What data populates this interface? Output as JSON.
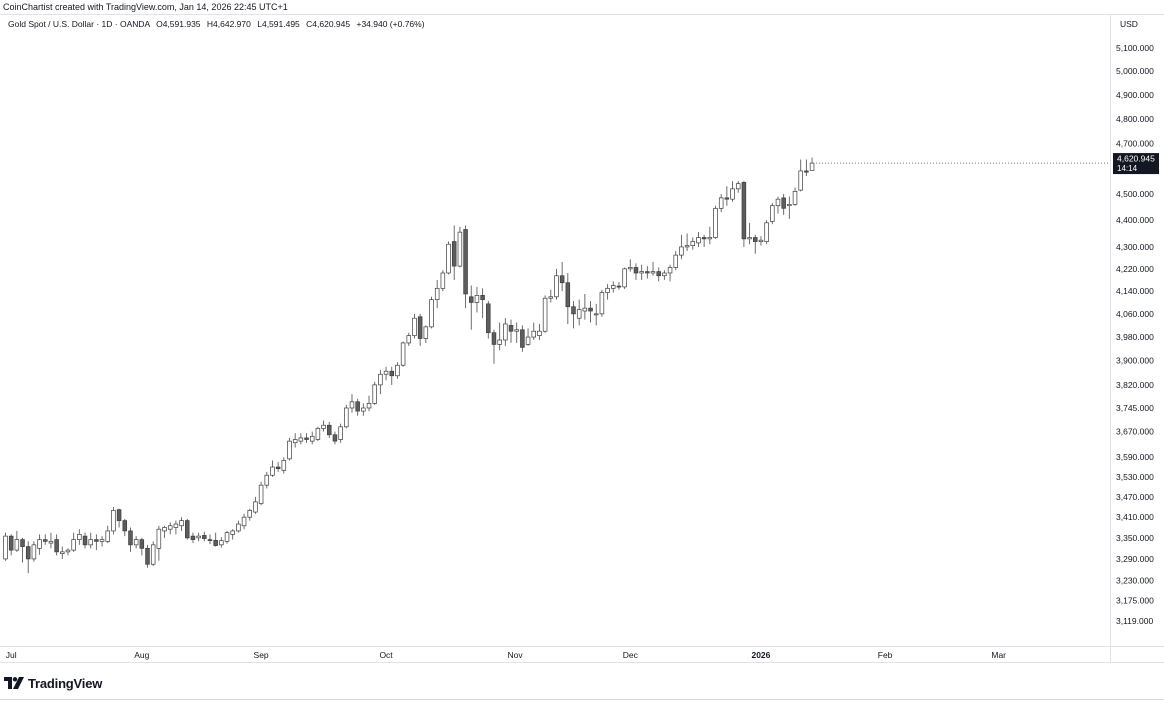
{
  "header": {
    "credit": "CoinChartist created with TradingView.com, Jan 14, 2026 22:45 UTC+1"
  },
  "legend": {
    "symbol": "Gold Spot / U.S. Dollar · 1D · OANDA",
    "open": "O4,591.935",
    "high": "H4,642.970",
    "low": "L4,591.495",
    "close": "C4,620.945",
    "change": "+34.940 (+0.76%)"
  },
  "currency_label": "USD",
  "price_tag": {
    "price": "4,620.945",
    "countdown": "14:14"
  },
  "brand": {
    "name": "TradingView"
  },
  "colors": {
    "up_body": "#ffffff",
    "down_body": "#5d5d5d",
    "wick": "#5d5d5d",
    "border": "#3c3c3c",
    "tag_bg": "#131722"
  },
  "chart_data": {
    "type": "candlestick",
    "title": "Gold Spot / U.S. Dollar · 1D · OANDA",
    "ylabel": "USD",
    "y_axis_labels": [
      "5,100.000",
      "5,000.000",
      "4,900.000",
      "4,800.000",
      "4,700.000",
      "4,500.000",
      "4,400.000",
      "4,300.000",
      "4,220.000",
      "4,140.000",
      "4,060.000",
      "3,980.000",
      "3,900.000",
      "3,820.000",
      "3,745.000",
      "3,670.000",
      "3,590.000",
      "3,530.000",
      "3,470.000",
      "3,410.000",
      "3,350.000",
      "3,290.000",
      "3,230.000",
      "3,175.000",
      "3,119.000"
    ],
    "y_axis_scale": "log",
    "ylim": [
      3090,
      5180
    ],
    "x_axis_labels": [
      {
        "label": "Jul",
        "date": "2025-07-01",
        "bold": false
      },
      {
        "label": "Aug",
        "date": "2025-08-01",
        "bold": false
      },
      {
        "label": "Sep",
        "date": "2025-09-01",
        "bold": false
      },
      {
        "label": "Oct",
        "date": "2025-10-01",
        "bold": false
      },
      {
        "label": "Nov",
        "date": "2025-11-01",
        "bold": false
      },
      {
        "label": "Dec",
        "date": "2025-12-01",
        "bold": false
      },
      {
        "label": "2026",
        "date": "2026-01-01",
        "bold": true
      },
      {
        "label": "Feb",
        "date": "2026-02-01",
        "bold": false
      },
      {
        "label": "Mar",
        "date": "2026-03-01",
        "bold": false
      }
    ],
    "candles": [
      {
        "date": "2025-06-30",
        "o": 3290,
        "h": 3365,
        "l": 3285,
        "c": 3355
      },
      {
        "date": "2025-07-01",
        "o": 3355,
        "h": 3360,
        "l": 3300,
        "c": 3315
      },
      {
        "date": "2025-07-02",
        "o": 3315,
        "h": 3370,
        "l": 3310,
        "c": 3345
      },
      {
        "date": "2025-07-03",
        "o": 3345,
        "h": 3350,
        "l": 3280,
        "c": 3325
      },
      {
        "date": "2025-07-04",
        "o": 3325,
        "h": 3340,
        "l": 3250,
        "c": 3290
      },
      {
        "date": "2025-07-07",
        "o": 3290,
        "h": 3340,
        "l": 3282,
        "c": 3330
      },
      {
        "date": "2025-07-08",
        "o": 3320,
        "h": 3360,
        "l": 3302,
        "c": 3345
      },
      {
        "date": "2025-07-09",
        "o": 3345,
        "h": 3360,
        "l": 3330,
        "c": 3340
      },
      {
        "date": "2025-07-10",
        "o": 3335,
        "h": 3365,
        "l": 3320,
        "c": 3340
      },
      {
        "date": "2025-07-11",
        "o": 3345,
        "h": 3360,
        "l": 3300,
        "c": 3310
      },
      {
        "date": "2025-07-14",
        "o": 3305,
        "h": 3325,
        "l": 3290,
        "c": 3310
      },
      {
        "date": "2025-07-15",
        "o": 3310,
        "h": 3320,
        "l": 3300,
        "c": 3315
      },
      {
        "date": "2025-07-16",
        "o": 3315,
        "h": 3365,
        "l": 3310,
        "c": 3345
      },
      {
        "date": "2025-07-17",
        "o": 3345,
        "h": 3375,
        "l": 3330,
        "c": 3360
      },
      {
        "date": "2025-07-18",
        "o": 3355,
        "h": 3365,
        "l": 3320,
        "c": 3330
      },
      {
        "date": "2025-07-21",
        "o": 3330,
        "h": 3365,
        "l": 3320,
        "c": 3345
      },
      {
        "date": "2025-07-22",
        "o": 3345,
        "h": 3360,
        "l": 3315,
        "c": 3340
      },
      {
        "date": "2025-07-23",
        "o": 3340,
        "h": 3355,
        "l": 3325,
        "c": 3345
      },
      {
        "date": "2025-07-24",
        "o": 3340,
        "h": 3385,
        "l": 3335,
        "c": 3370
      },
      {
        "date": "2025-07-25",
        "o": 3370,
        "h": 3440,
        "l": 3360,
        "c": 3430
      },
      {
        "date": "2025-07-28",
        "o": 3432,
        "h": 3435,
        "l": 3380,
        "c": 3400
      },
      {
        "date": "2025-07-29",
        "o": 3400,
        "h": 3405,
        "l": 3355,
        "c": 3370
      },
      {
        "date": "2025-07-30",
        "o": 3370,
        "h": 3380,
        "l": 3310,
        "c": 3330
      },
      {
        "date": "2025-07-31",
        "o": 3330,
        "h": 3355,
        "l": 3320,
        "c": 3345
      },
      {
        "date": "2025-08-01",
        "o": 3345,
        "h": 3350,
        "l": 3300,
        "c": 3320
      },
      {
        "date": "2025-08-04",
        "o": 3320,
        "h": 3330,
        "l": 3265,
        "c": 3275
      },
      {
        "date": "2025-08-05",
        "o": 3275,
        "h": 3340,
        "l": 3270,
        "c": 3330
      },
      {
        "date": "2025-08-06",
        "o": 3320,
        "h": 3385,
        "l": 3285,
        "c": 3375
      },
      {
        "date": "2025-08-07",
        "o": 3370,
        "h": 3385,
        "l": 3350,
        "c": 3380
      },
      {
        "date": "2025-08-08",
        "o": 3375,
        "h": 3395,
        "l": 3360,
        "c": 3385
      },
      {
        "date": "2025-08-11",
        "o": 3380,
        "h": 3400,
        "l": 3360,
        "c": 3390
      },
      {
        "date": "2025-08-12",
        "o": 3385,
        "h": 3410,
        "l": 3370,
        "c": 3400
      },
      {
        "date": "2025-08-13",
        "o": 3400,
        "h": 3405,
        "l": 3345,
        "c": 3350
      },
      {
        "date": "2025-08-14",
        "o": 3355,
        "h": 3365,
        "l": 3335,
        "c": 3345
      },
      {
        "date": "2025-08-15",
        "o": 3350,
        "h": 3365,
        "l": 3340,
        "c": 3355
      },
      {
        "date": "2025-08-18",
        "o": 3357,
        "h": 3368,
        "l": 3340,
        "c": 3348
      },
      {
        "date": "2025-08-19",
        "o": 3345,
        "h": 3360,
        "l": 3332,
        "c": 3343
      },
      {
        "date": "2025-08-20",
        "o": 3343,
        "h": 3365,
        "l": 3325,
        "c": 3328
      },
      {
        "date": "2025-08-21",
        "o": 3330,
        "h": 3352,
        "l": 3322,
        "c": 3342
      },
      {
        "date": "2025-08-22",
        "o": 3340,
        "h": 3370,
        "l": 3333,
        "c": 3365
      },
      {
        "date": "2025-08-25",
        "o": 3360,
        "h": 3375,
        "l": 3345,
        "c": 3370
      },
      {
        "date": "2025-08-26",
        "o": 3370,
        "h": 3400,
        "l": 3365,
        "c": 3390
      },
      {
        "date": "2025-08-27",
        "o": 3385,
        "h": 3420,
        "l": 3375,
        "c": 3410
      },
      {
        "date": "2025-08-28",
        "o": 3410,
        "h": 3435,
        "l": 3400,
        "c": 3430
      },
      {
        "date": "2025-08-29",
        "o": 3425,
        "h": 3470,
        "l": 3420,
        "c": 3455
      },
      {
        "date": "2025-09-01",
        "o": 3450,
        "h": 3515,
        "l": 3445,
        "c": 3505
      },
      {
        "date": "2025-09-02",
        "o": 3505,
        "h": 3545,
        "l": 3495,
        "c": 3535
      },
      {
        "date": "2025-09-03",
        "o": 3535,
        "h": 3580,
        "l": 3530,
        "c": 3560
      },
      {
        "date": "2025-09-04",
        "o": 3560,
        "h": 3575,
        "l": 3545,
        "c": 3555
      },
      {
        "date": "2025-09-05",
        "o": 3550,
        "h": 3590,
        "l": 3540,
        "c": 3580
      },
      {
        "date": "2025-09-08",
        "o": 3585,
        "h": 3650,
        "l": 3580,
        "c": 3640
      },
      {
        "date": "2025-09-09",
        "o": 3635,
        "h": 3665,
        "l": 3620,
        "c": 3645
      },
      {
        "date": "2025-09-10",
        "o": 3640,
        "h": 3665,
        "l": 3630,
        "c": 3650
      },
      {
        "date": "2025-09-11",
        "o": 3650,
        "h": 3665,
        "l": 3635,
        "c": 3645
      },
      {
        "date": "2025-09-12",
        "o": 3640,
        "h": 3670,
        "l": 3630,
        "c": 3655
      },
      {
        "date": "2025-09-15",
        "o": 3645,
        "h": 3685,
        "l": 3640,
        "c": 3680
      },
      {
        "date": "2025-09-16",
        "o": 3680,
        "h": 3705,
        "l": 3670,
        "c": 3690
      },
      {
        "date": "2025-09-17",
        "o": 3690,
        "h": 3700,
        "l": 3650,
        "c": 3660
      },
      {
        "date": "2025-09-18",
        "o": 3660,
        "h": 3670,
        "l": 3630,
        "c": 3640
      },
      {
        "date": "2025-09-19",
        "o": 3645,
        "h": 3695,
        "l": 3635,
        "c": 3685
      },
      {
        "date": "2025-09-22",
        "o": 3685,
        "h": 3755,
        "l": 3680,
        "c": 3745
      },
      {
        "date": "2025-09-23",
        "o": 3745,
        "h": 3790,
        "l": 3730,
        "c": 3765
      },
      {
        "date": "2025-09-24",
        "o": 3765,
        "h": 3775,
        "l": 3720,
        "c": 3735
      },
      {
        "date": "2025-09-25",
        "o": 3735,
        "h": 3760,
        "l": 3720,
        "c": 3745
      },
      {
        "date": "2025-09-26",
        "o": 3745,
        "h": 3785,
        "l": 3735,
        "c": 3760
      },
      {
        "date": "2025-09-29",
        "o": 3760,
        "h": 3830,
        "l": 3755,
        "c": 3820
      },
      {
        "date": "2025-09-30",
        "o": 3820,
        "h": 3870,
        "l": 3790,
        "c": 3855
      },
      {
        "date": "2025-10-01",
        "o": 3855,
        "h": 3880,
        "l": 3835,
        "c": 3865
      },
      {
        "date": "2025-10-02",
        "o": 3865,
        "h": 3880,
        "l": 3820,
        "c": 3850
      },
      {
        "date": "2025-10-03",
        "o": 3850,
        "h": 3895,
        "l": 3840,
        "c": 3885
      },
      {
        "date": "2025-10-06",
        "o": 3885,
        "h": 3965,
        "l": 3880,
        "c": 3960
      },
      {
        "date": "2025-10-07",
        "o": 3960,
        "h": 3995,
        "l": 3950,
        "c": 3985
      },
      {
        "date": "2025-10-08",
        "o": 3985,
        "h": 4060,
        "l": 3975,
        "c": 4045
      },
      {
        "date": "2025-10-09",
        "o": 4050,
        "h": 4060,
        "l": 3950,
        "c": 3975
      },
      {
        "date": "2025-10-10",
        "o": 3975,
        "h": 4020,
        "l": 3960,
        "c": 4015
      },
      {
        "date": "2025-10-13",
        "o": 4015,
        "h": 4120,
        "l": 4010,
        "c": 4110
      },
      {
        "date": "2025-10-14",
        "o": 4110,
        "h": 4180,
        "l": 4080,
        "c": 4150
      },
      {
        "date": "2025-10-15",
        "o": 4150,
        "h": 4215,
        "l": 4140,
        "c": 4205
      },
      {
        "date": "2025-10-16",
        "o": 4205,
        "h": 4320,
        "l": 4200,
        "c": 4310
      },
      {
        "date": "2025-10-17",
        "o": 4320,
        "h": 4380,
        "l": 4180,
        "c": 4230
      },
      {
        "date": "2025-10-20",
        "o": 4230,
        "h": 4375,
        "l": 4225,
        "c": 4355
      },
      {
        "date": "2025-10-21",
        "o": 4365,
        "h": 4380,
        "l": 4080,
        "c": 4130
      },
      {
        "date": "2025-10-22",
        "o": 4120,
        "h": 4160,
        "l": 4005,
        "c": 4100
      },
      {
        "date": "2025-10-23",
        "o": 4100,
        "h": 4155,
        "l": 4065,
        "c": 4125
      },
      {
        "date": "2025-10-24",
        "o": 4125,
        "h": 4150,
        "l": 4045,
        "c": 4110
      },
      {
        "date": "2025-10-27",
        "o": 4095,
        "h": 4105,
        "l": 3975,
        "c": 3995
      },
      {
        "date": "2025-10-28",
        "o": 3995,
        "h": 4005,
        "l": 3890,
        "c": 3955
      },
      {
        "date": "2025-10-29",
        "o": 3955,
        "h": 4030,
        "l": 3935,
        "c": 3970
      },
      {
        "date": "2025-10-30",
        "o": 3970,
        "h": 4045,
        "l": 3950,
        "c": 4025
      },
      {
        "date": "2025-10-31",
        "o": 4020,
        "h": 4040,
        "l": 3960,
        "c": 4000
      },
      {
        "date": "2025-11-03",
        "o": 4000,
        "h": 4030,
        "l": 3960,
        "c": 4005
      },
      {
        "date": "2025-11-04",
        "o": 4005,
        "h": 4020,
        "l": 3930,
        "c": 3945
      },
      {
        "date": "2025-11-05",
        "o": 3955,
        "h": 4010,
        "l": 3950,
        "c": 3980
      },
      {
        "date": "2025-11-06",
        "o": 3980,
        "h": 4030,
        "l": 3970,
        "c": 4000
      },
      {
        "date": "2025-11-07",
        "o": 3985,
        "h": 4025,
        "l": 3970,
        "c": 4000
      },
      {
        "date": "2025-11-10",
        "o": 4000,
        "h": 4125,
        "l": 3995,
        "c": 4115
      },
      {
        "date": "2025-11-11",
        "o": 4115,
        "h": 4145,
        "l": 4100,
        "c": 4120
      },
      {
        "date": "2025-11-12",
        "o": 4120,
        "h": 4220,
        "l": 4110,
        "c": 4195
      },
      {
        "date": "2025-11-13",
        "o": 4195,
        "h": 4245,
        "l": 4140,
        "c": 4170
      },
      {
        "date": "2025-11-14",
        "o": 4170,
        "h": 4205,
        "l": 4025,
        "c": 4085
      },
      {
        "date": "2025-11-17",
        "o": 4085,
        "h": 4105,
        "l": 4010,
        "c": 4060
      },
      {
        "date": "2025-11-18",
        "o": 4045,
        "h": 4110,
        "l": 4020,
        "c": 4075
      },
      {
        "date": "2025-11-19",
        "o": 4070,
        "h": 4130,
        "l": 4040,
        "c": 4080
      },
      {
        "date": "2025-11-20",
        "o": 4080,
        "h": 4105,
        "l": 4030,
        "c": 4070
      },
      {
        "date": "2025-11-21",
        "o": 4060,
        "h": 4095,
        "l": 4020,
        "c": 4060
      },
      {
        "date": "2025-11-24",
        "o": 4060,
        "h": 4145,
        "l": 4050,
        "c": 4135
      },
      {
        "date": "2025-11-25",
        "o": 4135,
        "h": 4165,
        "l": 4110,
        "c": 4150
      },
      {
        "date": "2025-11-26",
        "o": 4150,
        "h": 4175,
        "l": 4135,
        "c": 4160
      },
      {
        "date": "2025-11-27",
        "o": 4158,
        "h": 4172,
        "l": 4145,
        "c": 4155
      },
      {
        "date": "2025-11-28",
        "o": 4155,
        "h": 4225,
        "l": 4148,
        "c": 4220
      },
      {
        "date": "2025-12-01",
        "o": 4220,
        "h": 4255,
        "l": 4210,
        "c": 4225
      },
      {
        "date": "2025-12-02",
        "o": 4225,
        "h": 4240,
        "l": 4180,
        "c": 4205
      },
      {
        "date": "2025-12-03",
        "o": 4205,
        "h": 4235,
        "l": 4180,
        "c": 4210
      },
      {
        "date": "2025-12-04",
        "o": 4210,
        "h": 4230,
        "l": 4185,
        "c": 4205
      },
      {
        "date": "2025-12-05",
        "o": 4205,
        "h": 4245,
        "l": 4195,
        "c": 4210
      },
      {
        "date": "2025-12-08",
        "o": 4210,
        "h": 4225,
        "l": 4175,
        "c": 4195
      },
      {
        "date": "2025-12-09",
        "o": 4195,
        "h": 4215,
        "l": 4180,
        "c": 4205
      },
      {
        "date": "2025-12-10",
        "o": 4205,
        "h": 4235,
        "l": 4175,
        "c": 4225
      },
      {
        "date": "2025-12-11",
        "o": 4225,
        "h": 4285,
        "l": 4215,
        "c": 4270
      },
      {
        "date": "2025-12-12",
        "o": 4270,
        "h": 4345,
        "l": 4255,
        "c": 4300
      },
      {
        "date": "2025-12-15",
        "o": 4300,
        "h": 4350,
        "l": 4285,
        "c": 4305
      },
      {
        "date": "2025-12-16",
        "o": 4305,
        "h": 4335,
        "l": 4290,
        "c": 4320
      },
      {
        "date": "2025-12-17",
        "o": 4315,
        "h": 4355,
        "l": 4300,
        "c": 4335
      },
      {
        "date": "2025-12-18",
        "o": 4335,
        "h": 4345,
        "l": 4300,
        "c": 4330
      },
      {
        "date": "2025-12-19",
        "o": 4330,
        "h": 4375,
        "l": 4310,
        "c": 4335
      },
      {
        "date": "2025-12-22",
        "o": 4335,
        "h": 4455,
        "l": 4330,
        "c": 4445
      },
      {
        "date": "2025-12-23",
        "o": 4445,
        "h": 4500,
        "l": 4430,
        "c": 4485
      },
      {
        "date": "2025-12-24",
        "o": 4485,
        "h": 4530,
        "l": 4455,
        "c": 4480
      },
      {
        "date": "2025-12-25",
        "o": 4480,
        "h": 4550,
        "l": 4470,
        "c": 4520
      },
      {
        "date": "2025-12-26",
        "o": 4520,
        "h": 4550,
        "l": 4505,
        "c": 4540
      },
      {
        "date": "2025-12-29",
        "o": 4545,
        "h": 4550,
        "l": 4300,
        "c": 4330
      },
      {
        "date": "2025-12-30",
        "o": 4330,
        "h": 4390,
        "l": 4310,
        "c": 4335
      },
      {
        "date": "2025-12-31",
        "o": 4335,
        "h": 4345,
        "l": 4275,
        "c": 4320
      },
      {
        "date": "2026-01-01",
        "o": 4320,
        "h": 4340,
        "l": 4305,
        "c": 4325
      },
      {
        "date": "2026-01-02",
        "o": 4320,
        "h": 4400,
        "l": 4310,
        "c": 4390
      },
      {
        "date": "2026-01-05",
        "o": 4395,
        "h": 4465,
        "l": 4385,
        "c": 4455
      },
      {
        "date": "2026-01-06",
        "o": 4455,
        "h": 4490,
        "l": 4425,
        "c": 4480
      },
      {
        "date": "2026-01-07",
        "o": 4485,
        "h": 4500,
        "l": 4420,
        "c": 4445
      },
      {
        "date": "2026-01-08",
        "o": 4455,
        "h": 4490,
        "l": 4405,
        "c": 4460
      },
      {
        "date": "2026-01-09",
        "o": 4460,
        "h": 4525,
        "l": 4455,
        "c": 4510
      },
      {
        "date": "2026-01-12",
        "o": 4515,
        "h": 4635,
        "l": 4510,
        "c": 4590
      },
      {
        "date": "2026-01-13",
        "o": 4590,
        "h": 4635,
        "l": 4570,
        "c": 4585
      },
      {
        "date": "2026-01-14",
        "o": 4591.935,
        "h": 4642.97,
        "l": 4591.495,
        "c": 4620.945
      }
    ]
  }
}
